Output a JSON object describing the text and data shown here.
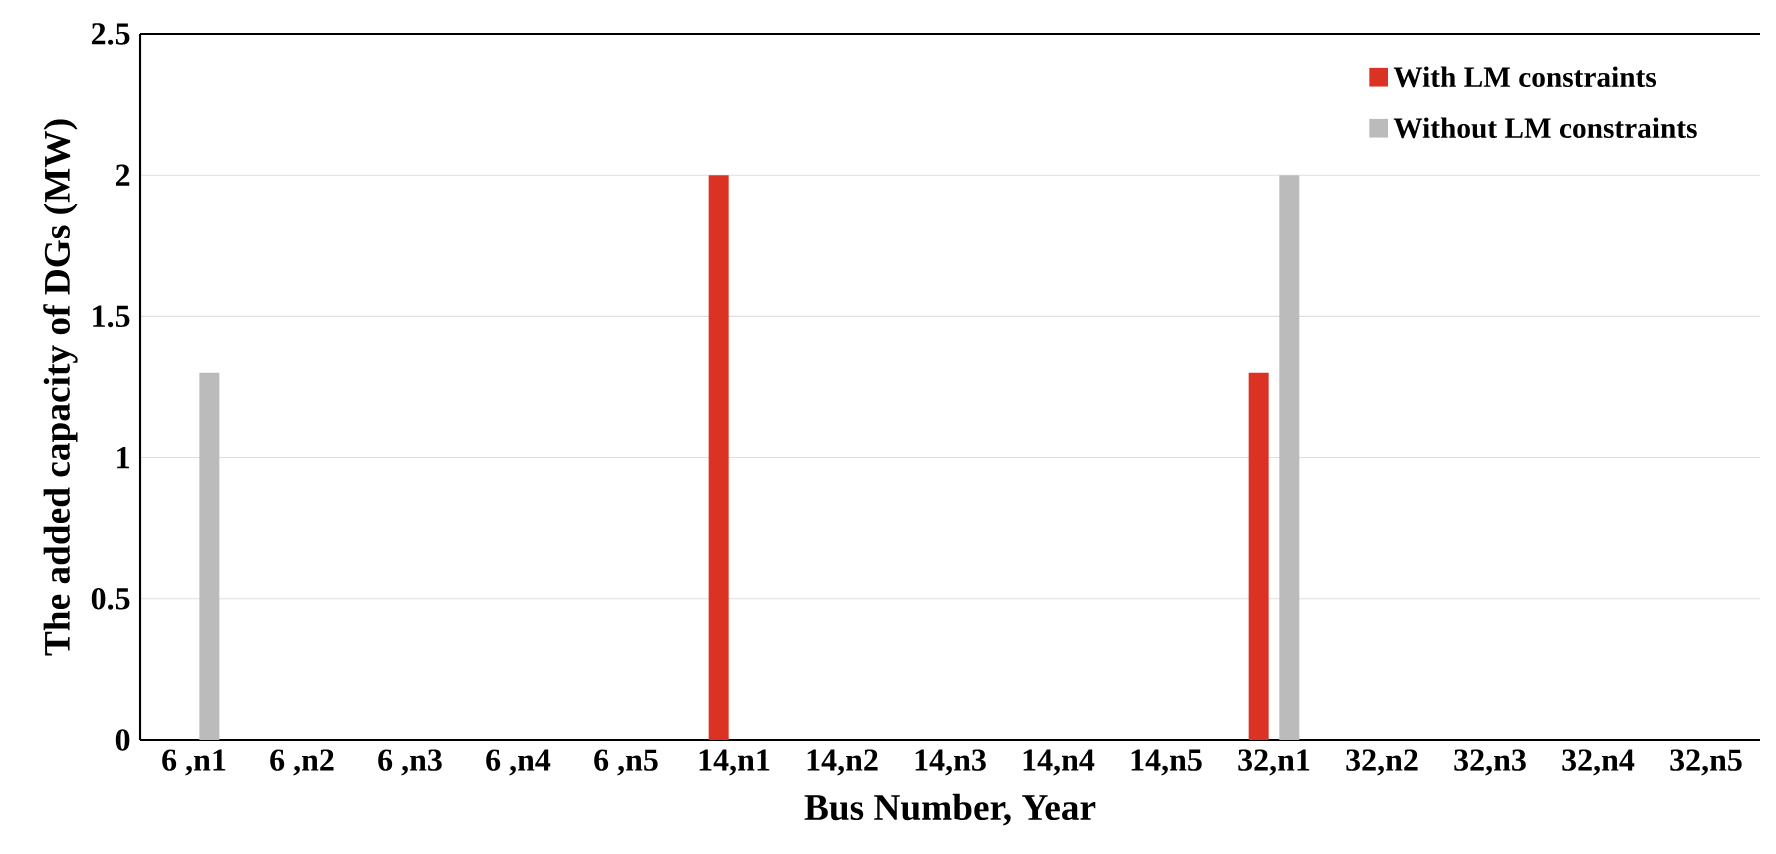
{
  "chart_data": {
    "type": "bar",
    "xlabel": "Bus Number, Year",
    "ylabel": "The added capacity of DGs (MW)",
    "categories": [
      "6 ,n1",
      "6 ,n2",
      "6 ,n3",
      "6 ,n4",
      "6 ,n5",
      "14,n1",
      "14,n2",
      "14,n3",
      "14,n4",
      "14,n5",
      "32,n1",
      "32,n2",
      "32,n3",
      "32,n4",
      "32,n5"
    ],
    "series": [
      {
        "name": "With LM constraints",
        "color": "#dc3223",
        "values": [
          0,
          0,
          0,
          0,
          0,
          2,
          0,
          0,
          0,
          0,
          1.3,
          0,
          0,
          0,
          0
        ]
      },
      {
        "name": "Without LM constraints",
        "color": "#bbbbbb",
        "values": [
          1.3,
          0,
          0,
          0,
          0,
          0,
          0,
          0,
          0,
          0,
          2,
          0,
          0,
          0,
          0
        ]
      }
    ],
    "ylim": [
      0,
      2.5
    ],
    "yticks": [
      0,
      0.5,
      1,
      1.5,
      2,
      2.5
    ],
    "grid": "y",
    "legend": "top right"
  }
}
